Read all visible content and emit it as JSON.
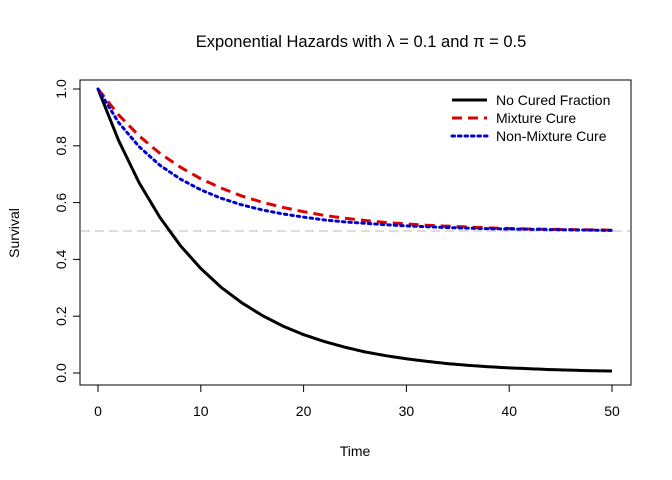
{
  "chart_data": {
    "type": "line",
    "title": "Exponential Hazards with λ = 0.1 and π = 0.5",
    "xlabel": "Time",
    "ylabel": "Survival",
    "xlim": [
      0,
      50
    ],
    "ylim": [
      0,
      1
    ],
    "xticks": [
      "0",
      "10",
      "20",
      "30",
      "40",
      "50"
    ],
    "yticks": [
      "0.0",
      "0.2",
      "0.4",
      "0.6",
      "0.8",
      "1.0"
    ],
    "grid": false,
    "legend_position": "top-right",
    "reference_line": {
      "y": 0.5,
      "color": "#c8c8c8",
      "style": "dashed"
    },
    "x": [
      0,
      2,
      4,
      6,
      8,
      10,
      12,
      14,
      16,
      18,
      20,
      22,
      24,
      26,
      28,
      30,
      32,
      34,
      36,
      38,
      40,
      42,
      44,
      46,
      48,
      50
    ],
    "series": [
      {
        "name": "No Cured Fraction",
        "color": "#000000",
        "style": "solid",
        "values": [
          1.0,
          0.819,
          0.67,
          0.549,
          0.449,
          0.368,
          0.301,
          0.247,
          0.202,
          0.165,
          0.135,
          0.111,
          0.091,
          0.074,
          0.061,
          0.05,
          0.041,
          0.033,
          0.027,
          0.022,
          0.018,
          0.015,
          0.012,
          0.01,
          0.008,
          0.007
        ]
      },
      {
        "name": "Mixture Cure",
        "color": "#e00000",
        "style": "dashed",
        "values": [
          1.0,
          0.909,
          0.835,
          0.774,
          0.725,
          0.684,
          0.651,
          0.623,
          0.601,
          0.583,
          0.568,
          0.555,
          0.545,
          0.537,
          0.53,
          0.525,
          0.52,
          0.517,
          0.514,
          0.511,
          0.509,
          0.507,
          0.506,
          0.505,
          0.504,
          0.503
        ]
      },
      {
        "name": "Non-Mixture Cure",
        "color": "#0000cc",
        "style": "dotted",
        "values": [
          1.0,
          0.882,
          0.797,
          0.732,
          0.683,
          0.645,
          0.615,
          0.592,
          0.574,
          0.56,
          0.549,
          0.539,
          0.532,
          0.527,
          0.522,
          0.518,
          0.515,
          0.512,
          0.51,
          0.508,
          0.507,
          0.506,
          0.505,
          0.504,
          0.503,
          0.502
        ]
      }
    ]
  }
}
